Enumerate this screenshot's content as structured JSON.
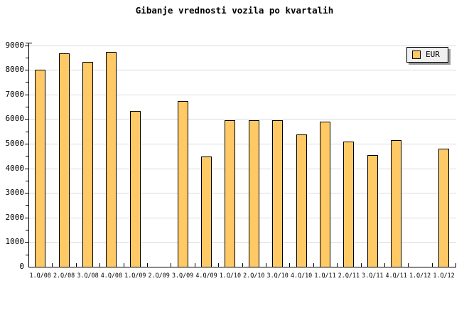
{
  "title": "Gibanje vrednosti vozila po kvartalih",
  "legend": {
    "label": "EUR"
  },
  "colors": {
    "background": "#ffffff",
    "bar_fill": "#ffc966",
    "bar_border": "#000000",
    "grid": "#dcdcdc",
    "axis": "#000000",
    "legend_bg": "#f0f0f0",
    "legend_shadow": "#999999",
    "text": "#000000"
  },
  "chart_data": {
    "type": "bar",
    "title": "Gibanje vrednosti vozila po kvartalih",
    "series_name": "EUR",
    "categories": [
      "1.Q/08",
      "2.Q/08",
      "3.Q/08",
      "4.Q/08",
      "1.Q/09",
      "2.Q/09",
      "3.Q/09",
      "4.Q/09",
      "1.Q/10",
      "2.Q/10",
      "3.Q/10",
      "4.Q/10",
      "1.Q/11",
      "2.Q/11",
      "3.Q/11",
      "4.Q/11",
      "1.Q/12",
      "1.Q/12"
    ],
    "values": [
      8000,
      8670,
      8310,
      8730,
      6330,
      null,
      6740,
      4480,
      5950,
      5950,
      5950,
      5370,
      5880,
      5080,
      4530,
      5150,
      null,
      4790
    ],
    "xlabel": "",
    "ylabel": "",
    "ylim": [
      0,
      9000
    ],
    "ytick_step": 1000,
    "yminor_step": 500,
    "y_tick_labels": [
      "0",
      "1000",
      "2000",
      "3000",
      "4000",
      "5000",
      "6000",
      "7000",
      "8000",
      "9000"
    ],
    "grid": "horizontal-major",
    "legend_position": "top-right"
  }
}
